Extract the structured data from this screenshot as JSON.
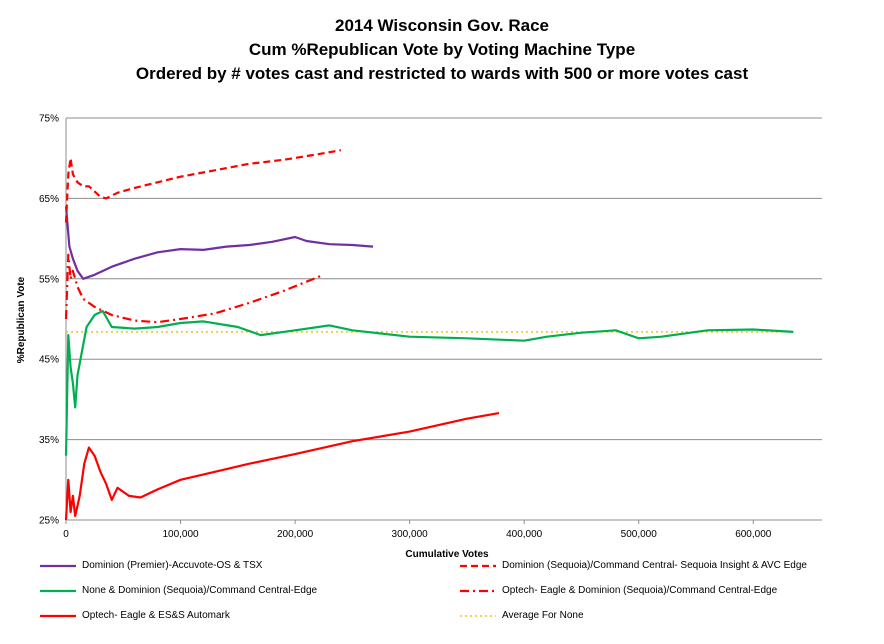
{
  "chart_data": {
    "type": "line",
    "title": [
      "2014 Wisconsin Gov. Race",
      "Cum %Republican Vote by Voting Machine Type",
      "Ordered by # votes cast and restricted to wards with 500 or more votes cast"
    ],
    "xlabel": "Cumulative Votes",
    "ylabel": "%Republican Vote",
    "xlim": [
      0,
      660000
    ],
    "ylim": [
      25,
      75
    ],
    "x_ticks": [
      0,
      100000,
      200000,
      300000,
      400000,
      500000,
      600000
    ],
    "x_tick_labels": [
      "0",
      "100,000",
      "200,000",
      "300,000",
      "400,000",
      "500,000",
      "600,000"
    ],
    "y_ticks": [
      25,
      35,
      45,
      55,
      65,
      75
    ],
    "y_tick_labels": [
      "25%",
      "35%",
      "45%",
      "55%",
      "65%",
      "75%"
    ],
    "grid": true,
    "legend_position": "bottom",
    "series": [
      {
        "name": "Dominion (Premier)-Accuvote-OS & TSX",
        "color": "#7030a0",
        "dash": "solid",
        "x": [
          0,
          3000,
          6000,
          10000,
          15000,
          25000,
          40000,
          60000,
          80000,
          100000,
          120000,
          140000,
          160000,
          180000,
          200000,
          210000,
          230000,
          250000,
          268000
        ],
        "y": [
          64,
          59,
          57.5,
          56,
          55,
          55.5,
          56.5,
          57.5,
          58.3,
          58.7,
          58.6,
          59,
          59.2,
          59.6,
          60.2,
          59.7,
          59.3,
          59.2,
          59
        ]
      },
      {
        "name": "Dominion (Sequoia)/Command Central- Sequoia Insight & AVC Edge",
        "color": "#ff0000",
        "dash": "dash",
        "x": [
          0,
          2000,
          4000,
          6000,
          10000,
          15000,
          20000,
          30000,
          35000,
          45000,
          60000,
          80000,
          100000,
          130000,
          160000,
          190000,
          220000,
          240000
        ],
        "y": [
          62,
          68,
          70,
          68,
          67,
          66.5,
          66.5,
          65.2,
          65,
          65.7,
          66.3,
          67,
          67.7,
          68.5,
          69.3,
          69.8,
          70.5,
          71
        ]
      },
      {
        "name": "None & Dominion (Sequoia)/Command Central-Edge",
        "color": "#00b050",
        "dash": "solid",
        "x": [
          0,
          2000,
          4000,
          6000,
          8000,
          10000,
          14000,
          18000,
          25000,
          32000,
          40000,
          60000,
          80000,
          100000,
          120000,
          150000,
          170000,
          200000,
          230000,
          250000,
          300000,
          350000,
          400000,
          420000,
          450000,
          480000,
          500000,
          520000,
          560000,
          600000,
          635000
        ],
        "y": [
          33,
          48,
          44,
          42,
          39,
          43,
          46,
          49,
          50.5,
          51,
          49,
          48.8,
          49,
          49.5,
          49.7,
          49,
          48,
          48.6,
          49.2,
          48.6,
          47.8,
          47.6,
          47.3,
          47.8,
          48.3,
          48.6,
          47.6,
          47.8,
          48.6,
          48.7,
          48.4
        ]
      },
      {
        "name": "Optech- Eagle & Dominion (Sequoia)/Command Central-Edge",
        "color": "#ff0000",
        "dash": "dashdot",
        "x": [
          0,
          2000,
          4000,
          6000,
          10000,
          15000,
          25000,
          40000,
          60000,
          80000,
          100000,
          130000,
          160000,
          190000,
          225000
        ],
        "y": [
          50,
          58,
          55,
          56,
          54,
          52.5,
          51.5,
          50.5,
          49.8,
          49.6,
          50,
          50.7,
          52,
          53.5,
          55.5
        ]
      },
      {
        "name": "Optech- Eagle & ES&S Automark",
        "color": "#ff0000",
        "dash": "solid",
        "x": [
          0,
          2000,
          4000,
          6000,
          8000,
          12000,
          16000,
          20000,
          25000,
          30000,
          35000,
          40000,
          45000,
          55000,
          65000,
          80000,
          100000,
          130000,
          160000,
          200000,
          250000,
          300000,
          350000,
          378000
        ],
        "y": [
          25,
          30,
          26,
          28,
          25.5,
          28,
          32,
          34,
          33,
          31,
          29.5,
          27.5,
          29,
          28,
          27.8,
          28.8,
          30,
          31,
          32,
          33.2,
          34.8,
          36,
          37.6,
          38.3
        ]
      },
      {
        "name": "Average For None",
        "color": "#ffc000",
        "dash": "dot",
        "x": [
          0,
          635000
        ],
        "y": [
          48.4,
          48.4
        ]
      }
    ]
  }
}
